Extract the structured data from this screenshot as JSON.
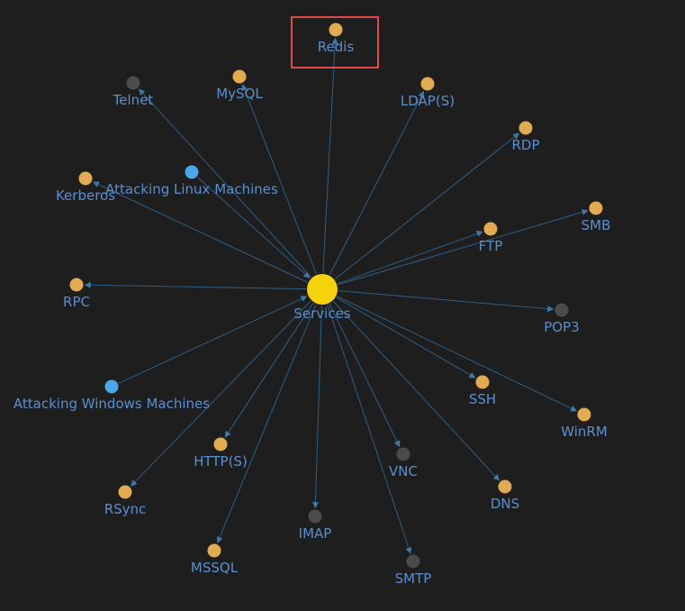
{
  "colors": {
    "background": "#1e1e1e",
    "edge": "#2d5f86",
    "label": "#5a8fd0",
    "hub": "#f5d20a",
    "service": "#e3ab50",
    "unresolved": "#4b4b4b",
    "related": "#4aa8e8",
    "highlight": "#e04848"
  },
  "graph": {
    "hub": {
      "id": "services",
      "label": "Services"
    },
    "nodes": [
      {
        "id": "redis",
        "label": "Redis",
        "kind": "service",
        "highlighted": true
      },
      {
        "id": "telnet",
        "label": "Telnet",
        "kind": "unresolved"
      },
      {
        "id": "mysql",
        "label": "MySQL",
        "kind": "service"
      },
      {
        "id": "ldaps",
        "label": "LDAP(S)",
        "kind": "service"
      },
      {
        "id": "rdp",
        "label": "RDP",
        "kind": "service"
      },
      {
        "id": "kerberos",
        "label": "Kerberos",
        "kind": "service"
      },
      {
        "id": "attacking-linux",
        "label": "Attacking Linux Machines",
        "kind": "related"
      },
      {
        "id": "smb",
        "label": "SMB",
        "kind": "service"
      },
      {
        "id": "ftp",
        "label": "FTP",
        "kind": "service"
      },
      {
        "id": "rpc",
        "label": "RPC",
        "kind": "service"
      },
      {
        "id": "pop3",
        "label": "POP3",
        "kind": "unresolved"
      },
      {
        "id": "ssh",
        "label": "SSH",
        "kind": "service"
      },
      {
        "id": "attacking-windows",
        "label": "Attacking Windows Machines",
        "kind": "related"
      },
      {
        "id": "winrm",
        "label": "WinRM",
        "kind": "service"
      },
      {
        "id": "https",
        "label": "HTTP(S)",
        "kind": "service"
      },
      {
        "id": "vnc",
        "label": "VNC",
        "kind": "unresolved"
      },
      {
        "id": "dns",
        "label": "DNS",
        "kind": "service"
      },
      {
        "id": "rsync",
        "label": "RSync",
        "kind": "service"
      },
      {
        "id": "imap",
        "label": "IMAP",
        "kind": "unresolved"
      },
      {
        "id": "mssql",
        "label": "MSSQL",
        "kind": "service"
      },
      {
        "id": "smtp",
        "label": "SMTP",
        "kind": "unresolved"
      }
    ],
    "edges": [
      {
        "from": "services",
        "to": "redis"
      },
      {
        "from": "services",
        "to": "telnet"
      },
      {
        "from": "services",
        "to": "mysql"
      },
      {
        "from": "services",
        "to": "ldaps"
      },
      {
        "from": "services",
        "to": "rdp"
      },
      {
        "from": "services",
        "to": "kerberos"
      },
      {
        "from": "attacking-linux",
        "to": "services"
      },
      {
        "from": "services",
        "to": "smb"
      },
      {
        "from": "services",
        "to": "ftp"
      },
      {
        "from": "services",
        "to": "rpc"
      },
      {
        "from": "services",
        "to": "pop3"
      },
      {
        "from": "services",
        "to": "ssh"
      },
      {
        "from": "attacking-windows",
        "to": "services"
      },
      {
        "from": "services",
        "to": "winrm"
      },
      {
        "from": "services",
        "to": "https"
      },
      {
        "from": "services",
        "to": "vnc"
      },
      {
        "from": "services",
        "to": "dns"
      },
      {
        "from": "services",
        "to": "rsync"
      },
      {
        "from": "services",
        "to": "imap"
      },
      {
        "from": "services",
        "to": "mssql"
      },
      {
        "from": "services",
        "to": "smtp"
      }
    ]
  }
}
